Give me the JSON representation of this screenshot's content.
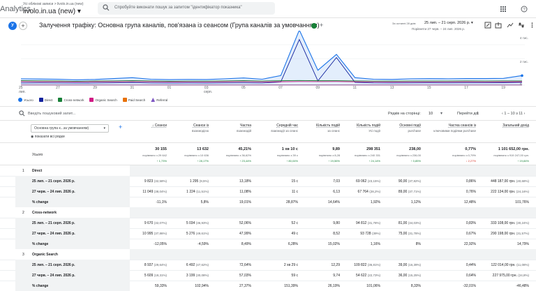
{
  "topbar": {
    "app_name": "Analytics",
    "breadcrumb": "Усі облікові записи > livolo.in.ua (new)",
    "property": "livolo.in.ua (new)",
    "search_placeholder": "Спробуйте виконати пошук за запитом \"ідентифікатор показника\""
  },
  "header": {
    "avatar_letter": "У",
    "title": "Залучення трафіку: Основна група каналів, пов'язана із сеансом (Група каналів за умовчанням)",
    "date_caption": "За останні 28 днів",
    "date_range": "25 лип. – 21 серп. 2026 р.",
    "compare_range": "Порівняти 27 черв. – 24 лип. 2026 р."
  },
  "chart": {
    "y_labels": [
      "4 тис.",
      "2 тис.",
      "0"
    ],
    "x_labels": [
      "25",
      "27",
      "29",
      "31",
      "01",
      "03",
      "05",
      "07",
      "09",
      "11",
      "13",
      "15",
      "17",
      "19",
      "21"
    ],
    "x_month_labels": [
      "лип.",
      "серп."
    ]
  },
  "chart_data": {
    "type": "line",
    "categories": [
      "25",
      "26",
      "27",
      "28",
      "29",
      "30",
      "31",
      "01",
      "02",
      "03",
      "04",
      "05",
      "06",
      "07",
      "08",
      "09",
      "10",
      "11",
      "12",
      "13",
      "14",
      "15",
      "16",
      "17",
      "18",
      "19",
      "20",
      "21"
    ],
    "series": [
      {
        "name": "Усього",
        "color": "#1a73e8",
        "values": [
          600,
          580,
          560,
          500,
          540,
          620,
          700,
          560,
          520,
          540,
          530,
          600,
          680,
          560,
          900,
          5200,
          1400,
          2900,
          700,
          560,
          540,
          600,
          610,
          600,
          620,
          620,
          640,
          900
        ]
      },
      {
        "name": "Direct",
        "color": "#12239e",
        "values": [
          200,
          210,
          200,
          190,
          200,
          220,
          240,
          200,
          190,
          200,
          190,
          210,
          220,
          200,
          300,
          4300,
          400,
          2600,
          260,
          210,
          200,
          210,
          220,
          210,
          220,
          220,
          230,
          260
        ]
      },
      {
        "name": "Cross-network",
        "color": "#188038",
        "values": [
          420,
          410,
          400,
          360,
          390,
          400,
          420,
          400,
          370,
          380,
          380,
          400,
          420,
          390,
          420,
          440,
          420,
          420,
          400,
          380,
          380,
          390,
          390,
          390,
          400,
          390,
          400,
          400
        ]
      },
      {
        "name": "Organic Search",
        "color": "#d01884",
        "values": [
          330,
          320,
          320,
          300,
          320,
          320,
          330,
          320,
          300,
          310,
          300,
          320,
          330,
          310,
          320,
          340,
          330,
          340,
          320,
          310,
          300,
          310,
          310,
          310,
          320,
          310,
          320,
          320
        ]
      },
      {
        "name": "Paid Search",
        "color": "#e8710a",
        "values": [
          20,
          20,
          20,
          20,
          20,
          20,
          20,
          20,
          20,
          20,
          20,
          20,
          20,
          20,
          20,
          20,
          20,
          20,
          20,
          20,
          20,
          20,
          20,
          20,
          20,
          20,
          20,
          20
        ]
      },
      {
        "name": "Referral",
        "color": "#7e57c2",
        "values": [
          10,
          10,
          10,
          10,
          10,
          10,
          10,
          10,
          10,
          10,
          10,
          10,
          10,
          10,
          10,
          10,
          10,
          10,
          10,
          10,
          10,
          10,
          10,
          10,
          10,
          10,
          10,
          10
        ]
      }
    ],
    "ylim": [
      0,
      5000
    ],
    "ylabel": "",
    "xlabel": ""
  },
  "legend": [
    {
      "name": "Усього",
      "color": "#1a73e8"
    },
    {
      "name": "Direct",
      "color": "#12239e"
    },
    {
      "name": "Cross-network",
      "color": "#188038"
    },
    {
      "name": "Organic Search",
      "color": "#d01884"
    },
    {
      "name": "Paid Search",
      "color": "#e8710a"
    },
    {
      "name": "Referral",
      "color": "#7e57c2"
    }
  ],
  "table_controls": {
    "search_placeholder": "Введіть пошуковий запит...",
    "rows_label": "Рядків на сторінці:",
    "rows_value": "10",
    "goto_label": "Перейти до:",
    "goto_value": "1",
    "pager": "1 – 10 з 11"
  },
  "table": {
    "dimension": "Основна група к...за умовчанням)",
    "show_all": "показати всі рядки",
    "columns": [
      {
        "title": "↓ Сеанси",
        "sub": ""
      },
      {
        "title": "Сеанси із",
        "sub": "взаємодією"
      },
      {
        "title": "Частка",
        "sub": "взаємодій"
      },
      {
        "title": "Середній час",
        "sub": "взаємодії за сеанс"
      },
      {
        "title": "Кількість подій",
        "sub": "за сеанс"
      },
      {
        "title": "Кількість подій",
        "sub": "Усі події"
      },
      {
        "title": "Основні події",
        "sub": "purchase"
      },
      {
        "title": "Частка сеансів із",
        "sub": "ключовими подіями purchase"
      },
      {
        "title": "Загальний дохід",
        "sub": ""
      }
    ],
    "total_label": "Усього",
    "total": [
      {
        "v": "30 155",
        "c": "порівняно з 29 642",
        "d": "↑ 1,73%",
        "up": true
      },
      {
        "v": "13 632",
        "c": "порівняно з 10 636",
        "d": "↑ 28,17%",
        "up": true
      },
      {
        "v": "45,21%",
        "c": "порівняно з 36,62%",
        "d": "↑ 23,44%",
        "up": true
      },
      {
        "v": "1 хв 10 с",
        "c": "порівняно з 39 с",
        "d": "↑ 80,04%",
        "up": true
      },
      {
        "v": "9,89",
        "c": "порівняно з 8,28",
        "d": "↑ 19,56%",
        "up": true
      },
      {
        "v": "298 351",
        "c": "порівняно з 240 331",
        "d": "↑ 24,14%",
        "up": true
      },
      {
        "v": "238,00",
        "c": "порівняно з 236,00",
        "d": "↑ 0,85%",
        "up": true
      },
      {
        "v": "0,77%",
        "c": "порівняно з 0,79%",
        "d": "↓ 2,27%",
        "up": false
      },
      {
        "v": "1 101 652,00 грн.",
        "c": "порівняно з 919 247,00 грн.",
        "d": "↑ 19,84%",
        "up": true
      }
    ],
    "groups": [
      {
        "num": "1",
        "name": "Direct",
        "rows": [
          {
            "label": "25 лип. – 21 серп. 2026 р.",
            "cells": [
              "9 823 (32,58%)",
              "1 295 (9,5%)",
              "13,18%",
              "15 с",
              "7,03",
              "69 062 (23,15%)",
              "90,00 (37,82%)",
              "0,86%",
              "448 187,00 грн. (40,68%)"
            ]
          },
          {
            "label": "27 черв. – 24 лип. 2026 р.",
            "cells": [
              "11 049 (38,04%)",
              "1 224 (11,51%)",
              "11,08%",
              "11 с",
              "6,13",
              "67 764 (28,2%)",
              "89,00 (37,71%)",
              "0,76%",
              "222 134,00 грн. (24,16%)"
            ]
          },
          {
            "label": "% change",
            "cells": [
              "-11,1%",
              "5,8%",
              "19,01%",
              "28,87%",
              "14,64%",
              "1,92%",
              "1,12%",
              "12,48%",
              "101,76%"
            ]
          }
        ]
      },
      {
        "num": "2",
        "name": "Cross-network",
        "rows": [
          {
            "label": "25 лип. – 21 серп. 2026 р.",
            "cells": [
              "9 670 (32,07%)",
              "5 034 (36,93%)",
              "52,06%",
              "52 с",
              "9,80",
              "94 812 (31,78%)",
              "81,00 (34,03%)",
              "0,83%",
              "333 108,00 грн. (30,24%)"
            ]
          },
          {
            "label": "27 черв. – 24 лип. 2026 р.",
            "cells": [
              "10 995 (37,86%)",
              "5 276 (49,61%)",
              "47,99%",
              "49 с",
              "8,52",
              "93 728 (39%)",
              "75,00 (31,78%)",
              "0,67%",
              "290 198,00 грн. (31,57%)"
            ]
          },
          {
            "label": "% change",
            "cells": [
              "-12,05%",
              "-4,59%",
              "8,49%",
              "6,28%",
              "15,02%",
              "1,16%",
              "8%",
              "22,92%",
              "14,79%"
            ]
          }
        ]
      },
      {
        "num": "3",
        "name": "Organic Search",
        "rows": [
          {
            "label": "25 лип. – 21 серп. 2026 р.",
            "cells": [
              "8 937 (29,64%)",
              "6 492 (47,62%)",
              "72,64%",
              "2 хв 29 с",
              "12,29",
              "109 822 (36,81%)",
              "39,00 (16,39%)",
              "0,44%",
              "122 014,00 грн. (11,08%)"
            ]
          },
          {
            "label": "27 черв. – 24 лип. 2026 р.",
            "cells": [
              "5 609 (19,31%)",
              "3 199 (30,08%)",
              "57,03%",
              "59 с",
              "9,74",
              "54 622 (22,73%)",
              "36,00 (15,25%)",
              "0,64%",
              "227 975,00 грн. (24,8%)"
            ]
          },
          {
            "label": "% change",
            "cells": [
              "59,33%",
              "102,94%",
              "27,37%",
              "151,39%",
              "26,19%",
              "101,06%",
              "8,33%",
              "-32,01%",
              "-46,48%"
            ]
          }
        ]
      }
    ]
  }
}
